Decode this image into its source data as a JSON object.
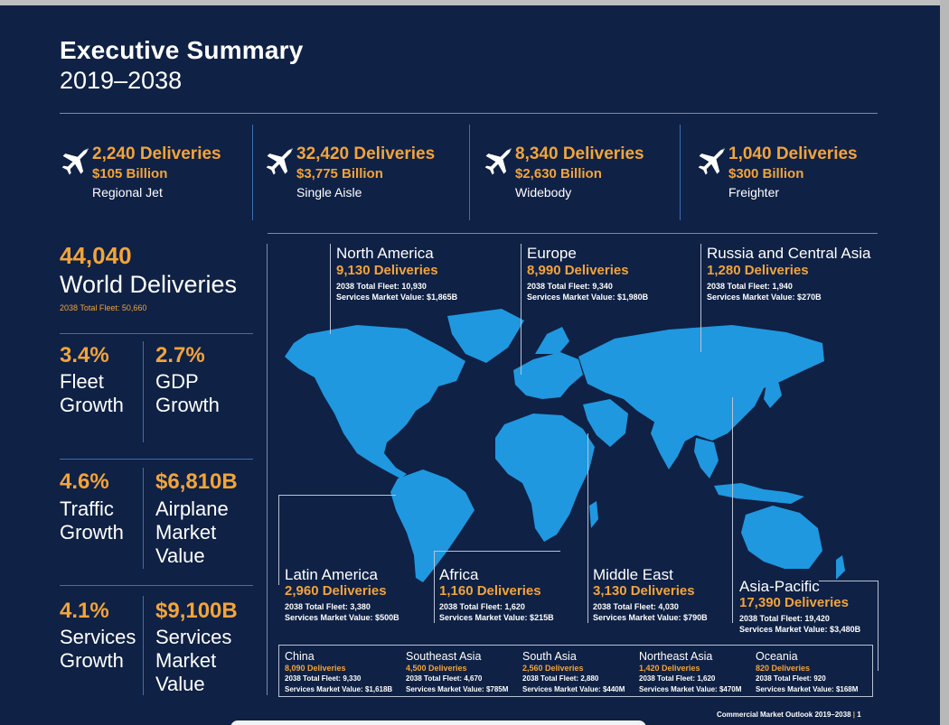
{
  "header": {
    "title": "Executive Summary",
    "years": "2019–2038"
  },
  "categories": [
    {
      "deliveries": "2,240 Deliveries",
      "value": "$105 Billion",
      "name": "Regional Jet",
      "icon": "airplane-icon"
    },
    {
      "deliveries": "32,420 Deliveries",
      "value": "$3,775 Billion",
      "name": "Single Aisle",
      "icon": "airplane-icon"
    },
    {
      "deliveries": "8,340 Deliveries",
      "value": "$2,630 Billion",
      "name": "Widebody",
      "icon": "airplane-icon"
    },
    {
      "deliveries": "1,040 Deliveries",
      "value": "$300 Billion",
      "name": "Freighter",
      "icon": "airplane-icon"
    }
  ],
  "world": {
    "deliveries": "44,040",
    "label": "World Deliveries",
    "fleet": "2038 Total Fleet: 50,660"
  },
  "stats": {
    "fleet_growth": {
      "value": "3.4%",
      "l1": "Fleet",
      "l2": "Growth"
    },
    "gdp_growth": {
      "value": "2.7%",
      "l1": "GDP",
      "l2": "Growth"
    },
    "traffic_growth": {
      "value": "4.6%",
      "l1": "Traffic",
      "l2": "Growth"
    },
    "airplane_value": {
      "value": "$6,810B",
      "l1": "Airplane",
      "l2": "Market",
      "l3": "Value"
    },
    "services_growth": {
      "value": "4.1%",
      "l1": "Services",
      "l2": "Growth"
    },
    "services_value": {
      "value": "$9,100B",
      "l1": "Services",
      "l2": "Market",
      "l3": "Value"
    }
  },
  "regions": {
    "north_america": {
      "name": "North America",
      "deliveries": "9,130 Deliveries",
      "fleet": "2038 Total Fleet: 10,930",
      "services": "Services Market Value: $1,865B"
    },
    "europe": {
      "name": "Europe",
      "deliveries": "8,990 Deliveries",
      "fleet": "2038 Total Fleet: 9,340",
      "services": "Services Market Value: $1,980B"
    },
    "russia": {
      "name": "Russia and Central Asia",
      "deliveries": "1,280 Deliveries",
      "fleet": "2038 Total Fleet: 1,940",
      "services": "Services Market Value: $270B"
    },
    "latin_america": {
      "name": "Latin America",
      "deliveries": "2,960 Deliveries",
      "fleet": "2038 Total Fleet: 3,380",
      "services": "Services Market Value: $500B"
    },
    "africa": {
      "name": "Africa",
      "deliveries": "1,160 Deliveries",
      "fleet": "2038 Total Fleet: 1,620",
      "services": "Services Market Value: $215B"
    },
    "middle_east": {
      "name": "Middle East",
      "deliveries": "3,130 Deliveries",
      "fleet": "2038 Total Fleet: 4,030",
      "services": "Services Market Value: $790B"
    },
    "asia_pacific": {
      "name": "Asia-Pacific",
      "deliveries": "17,390 Deliveries",
      "fleet": "2038 Total Fleet: 19,420",
      "services": "Services Market Value: $3,480B"
    }
  },
  "subregions": [
    {
      "name": "China",
      "deliveries": "8,090 Deliveries",
      "fleet": "2038 Total Fleet: 9,330",
      "services": "Services Market Value: $1,618B"
    },
    {
      "name": "Southeast Asia",
      "deliveries": "4,500 Deliveries",
      "fleet": "2038 Total Fleet: 4,670",
      "services": "Services Market Value: $785M"
    },
    {
      "name": "South Asia",
      "deliveries": "2,560 Deliveries",
      "fleet": "2038 Total Fleet: 2,880",
      "services": "Services Market Value: $440M"
    },
    {
      "name": "Northeast Asia",
      "deliveries": "1,420 Deliveries",
      "fleet": "2038 Total Fleet: 1,620",
      "services": "Services Market Value: $470M"
    },
    {
      "name": "Oceania",
      "deliveries": "820 Deliveries",
      "fleet": "2038 Total Fleet: 920",
      "services": "Services Market Value: $168M"
    }
  ],
  "footer": {
    "text": "Commercial Market Outlook 2019–2038",
    "page": "1"
  },
  "colors": {
    "background": "#0f2145",
    "accent": "#f2a43a",
    "map": "#1f98e0",
    "divider": "#3e6fb0"
  }
}
